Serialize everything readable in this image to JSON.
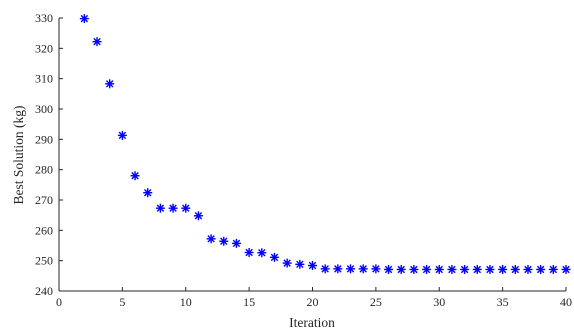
{
  "chart_data": {
    "type": "scatter",
    "xlabel": "Iteration",
    "ylabel": "Best Solution (kg)",
    "xlim": [
      0,
      40
    ],
    "ylim": [
      240,
      330
    ],
    "xticks": [
      0,
      5,
      10,
      15,
      20,
      25,
      30,
      35,
      40
    ],
    "yticks": [
      240,
      250,
      260,
      270,
      280,
      290,
      300,
      310,
      320,
      330
    ],
    "grid": false,
    "marker": "asterisk",
    "color": "#0000ff",
    "series": [
      {
        "x": [
          2,
          3,
          4,
          5,
          6,
          7,
          8,
          9,
          10,
          11,
          12,
          13,
          14,
          15,
          16,
          17,
          18,
          19,
          20,
          21,
          22,
          23,
          24,
          25,
          26,
          27,
          28,
          29,
          30,
          31,
          32,
          33,
          34,
          35,
          36,
          37,
          38,
          39,
          40
        ],
        "y": [
          329.8,
          322.2,
          308.3,
          291.3,
          278.0,
          272.4,
          267.3,
          267.3,
          267.3,
          264.8,
          257.2,
          256.4,
          255.7,
          252.7,
          252.6,
          251.1,
          249.2,
          248.8,
          248.4,
          247.3,
          247.3,
          247.3,
          247.3,
          247.3,
          247.1,
          247.1,
          247.1,
          247.1,
          247.1,
          247.1,
          247.1,
          247.1,
          247.1,
          247.1,
          247.1,
          247.1,
          247.1,
          247.1,
          247.1
        ]
      }
    ]
  }
}
